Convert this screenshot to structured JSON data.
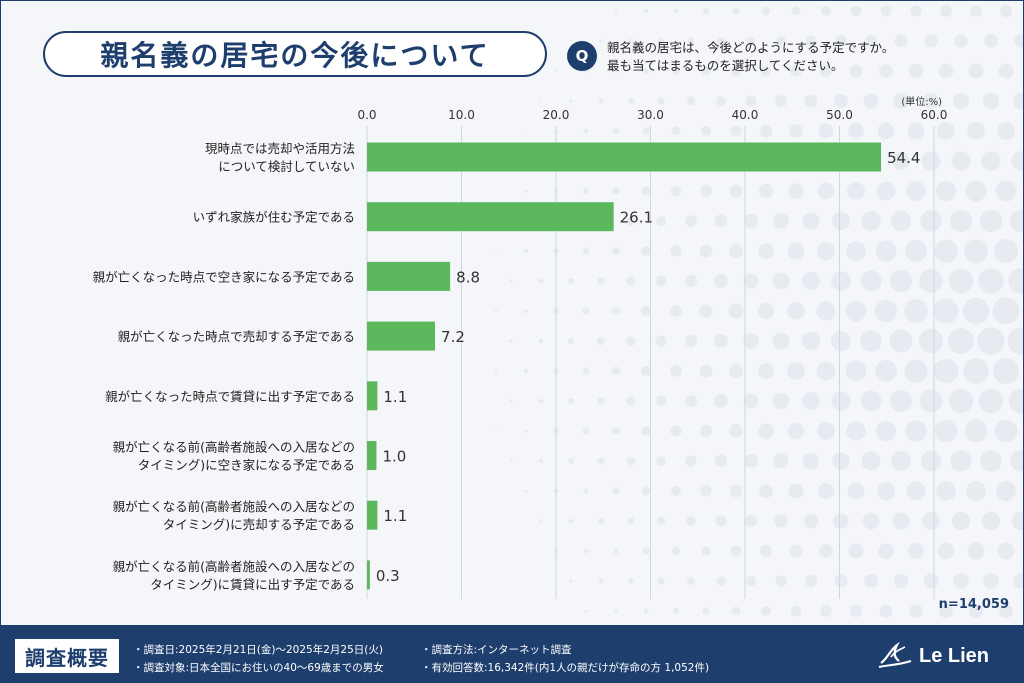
{
  "title": "親名義の居宅の今後について",
  "question": {
    "badge": "Q",
    "line1": "親名義の居宅は、今後どのようにする予定ですか。",
    "line2": "最も当てはまるものを選択してください。"
  },
  "unit_label": "(単位:%)",
  "n_label": "n=14,059",
  "colors": {
    "bar": "#5cb85c",
    "navy": "#1e3f6e"
  },
  "chart_data": {
    "type": "bar",
    "orientation": "horizontal",
    "xlim": [
      0,
      60
    ],
    "ticks": [
      "0.0",
      "10.0",
      "20.0",
      "30.0",
      "40.0",
      "50.0",
      "60.0"
    ],
    "grid": true,
    "categories": [
      [
        "現時点では売却や活用方法",
        "について検討していない"
      ],
      [
        "いずれ家族が住む予定である"
      ],
      [
        "親が亡くなった時点で空き家になる予定である"
      ],
      [
        "親が亡くなった時点で売却する予定である"
      ],
      [
        "親が亡くなった時点で賃貸に出す予定である"
      ],
      [
        "親が亡くなる前(高齢者施設への入居などの",
        "タイミング)に空き家になる予定である"
      ],
      [
        "親が亡くなる前(高齢者施設への入居などの",
        "タイミング)に売却する予定である"
      ],
      [
        "親が亡くなる前(高齢者施設への入居などの",
        "タイミング)に賃貸に出す予定である"
      ]
    ],
    "values": [
      54.4,
      26.1,
      8.8,
      7.2,
      1.1,
      1.0,
      1.1,
      0.3
    ],
    "value_labels": [
      "54.4",
      "26.1",
      "8.8",
      "7.2",
      "1.1",
      "1.0",
      "1.1",
      "0.3"
    ]
  },
  "footer": {
    "tag": "調査概要",
    "date": "・調査日:2025年2月21日(金)〜2025年2月25日(火)",
    "target": "・調査対象:日本全国にお住いの40〜69歳までの男女",
    "method": "・調査方法:インターネット調査",
    "responses": "・有効回答数:16,342件(内1人の親だけが存命の方 1,052件)",
    "logo": "Le Lien"
  }
}
